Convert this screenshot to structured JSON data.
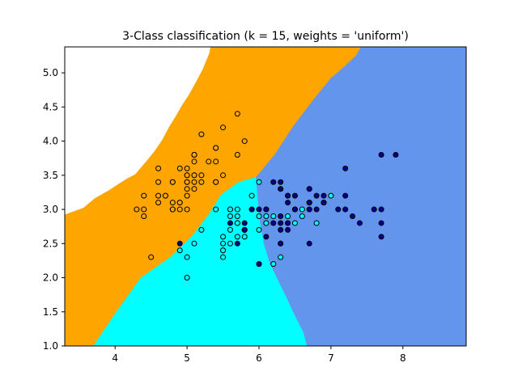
{
  "chart_data": {
    "type": "scatter",
    "title": "3-Class classification (k = 15, weights = 'uniform')",
    "xlabel": "",
    "ylabel": "",
    "xlim": [
      3.3,
      8.88
    ],
    "ylim": [
      1.0,
      5.38
    ],
    "x_ticks": [
      4,
      5,
      6,
      7,
      8
    ],
    "y_ticks": [
      1.0,
      1.5,
      2.0,
      2.5,
      3.0,
      3.5,
      4.0,
      4.5,
      5.0
    ],
    "grid": false,
    "legend": "none",
    "regions": [
      {
        "class": "class-0",
        "color": "#ffa500",
        "boundary": [
          [
            3.3,
            5.38
          ],
          [
            5.33,
            5.38
          ],
          [
            5.31,
            5.28
          ],
          [
            5.22,
            5.05
          ],
          [
            5.12,
            4.85
          ],
          [
            5.03,
            4.68
          ],
          [
            4.93,
            4.52
          ],
          [
            4.85,
            4.37
          ],
          [
            4.76,
            4.22
          ],
          [
            4.66,
            4.02
          ],
          [
            4.55,
            3.85
          ],
          [
            4.45,
            3.72
          ],
          [
            4.36,
            3.61
          ],
          [
            4.28,
            3.51
          ],
          [
            4.17,
            3.45
          ],
          [
            4.05,
            3.37
          ],
          [
            3.92,
            3.28
          ],
          [
            3.72,
            3.16
          ],
          [
            3.56,
            3.02
          ],
          [
            3.3,
            2.92
          ],
          [
            3.3,
            1.0
          ],
          [
            3.7,
            1.0
          ],
          [
            4.02,
            1.5
          ],
          [
            4.36,
            2.0
          ],
          [
            4.77,
            2.3
          ],
          [
            5.08,
            2.62
          ],
          [
            5.3,
            2.92
          ],
          [
            5.48,
            3.22
          ],
          [
            5.72,
            3.4
          ],
          [
            5.96,
            3.47
          ],
          [
            6.22,
            3.8
          ],
          [
            6.48,
            4.22
          ],
          [
            6.74,
            4.58
          ],
          [
            7.0,
            4.92
          ],
          [
            7.2,
            5.1
          ],
          [
            7.35,
            5.25
          ],
          [
            7.42,
            5.38
          ]
        ]
      },
      {
        "class": "class-1",
        "color": "#00ffff",
        "boundary": [
          [
            3.7,
            1.0
          ],
          [
            6.67,
            1.0
          ],
          [
            6.62,
            1.2
          ],
          [
            6.5,
            1.45
          ],
          [
            6.38,
            1.72
          ],
          [
            6.26,
            1.98
          ],
          [
            6.15,
            2.22
          ],
          [
            6.07,
            2.5
          ],
          [
            6.02,
            2.8
          ],
          [
            5.99,
            3.1
          ],
          [
            5.96,
            3.47
          ],
          [
            5.72,
            3.4
          ],
          [
            5.48,
            3.22
          ],
          [
            5.3,
            2.92
          ],
          [
            5.08,
            2.62
          ],
          [
            4.77,
            2.3
          ],
          [
            4.36,
            2.0
          ],
          [
            4.02,
            1.5
          ]
        ]
      },
      {
        "class": "class-2",
        "color": "#6495ed",
        "boundary": [
          [
            7.42,
            5.38
          ],
          [
            8.88,
            5.38
          ],
          [
            8.88,
            1.0
          ],
          [
            6.67,
            1.0
          ],
          [
            6.62,
            1.2
          ],
          [
            6.5,
            1.45
          ],
          [
            6.38,
            1.72
          ],
          [
            6.26,
            1.98
          ],
          [
            6.15,
            2.22
          ],
          [
            6.07,
            2.5
          ],
          [
            6.02,
            2.8
          ],
          [
            5.99,
            3.1
          ],
          [
            5.96,
            3.47
          ],
          [
            6.22,
            3.8
          ],
          [
            6.48,
            4.22
          ],
          [
            6.74,
            4.58
          ],
          [
            7.0,
            4.92
          ],
          [
            7.2,
            5.1
          ],
          [
            7.35,
            5.25
          ]
        ]
      }
    ],
    "series": [
      {
        "class": "class-0",
        "color": "#ffa500",
        "points": [
          [
            5.1,
            3.5
          ],
          [
            4.9,
            3.0
          ],
          [
            4.7,
            3.2
          ],
          [
            4.6,
            3.1
          ],
          [
            5.0,
            3.6
          ],
          [
            5.4,
            3.9
          ],
          [
            4.6,
            3.4
          ],
          [
            5.0,
            3.4
          ],
          [
            4.4,
            2.9
          ],
          [
            4.9,
            3.1
          ],
          [
            5.4,
            3.7
          ],
          [
            4.8,
            3.4
          ],
          [
            4.8,
            3.0
          ],
          [
            4.3,
            3.0
          ],
          [
            5.8,
            4.0
          ],
          [
            5.7,
            4.4
          ],
          [
            5.4,
            3.9
          ],
          [
            5.1,
            3.5
          ],
          [
            5.7,
            3.8
          ],
          [
            5.1,
            3.8
          ],
          [
            5.4,
            3.4
          ],
          [
            5.1,
            3.7
          ],
          [
            4.6,
            3.6
          ],
          [
            5.1,
            3.3
          ],
          [
            4.8,
            3.4
          ],
          [
            5.0,
            3.0
          ],
          [
            5.0,
            3.4
          ],
          [
            5.2,
            3.5
          ],
          [
            5.2,
            3.4
          ],
          [
            4.7,
            3.2
          ],
          [
            4.8,
            3.1
          ],
          [
            5.4,
            3.4
          ],
          [
            5.2,
            4.1
          ],
          [
            5.5,
            4.2
          ],
          [
            4.9,
            3.1
          ],
          [
            5.0,
            3.2
          ],
          [
            5.5,
            3.5
          ],
          [
            4.9,
            3.6
          ],
          [
            4.4,
            3.0
          ],
          [
            5.1,
            3.4
          ],
          [
            5.0,
            3.5
          ],
          [
            4.5,
            2.3
          ],
          [
            4.4,
            3.2
          ],
          [
            5.0,
            3.5
          ],
          [
            5.1,
            3.8
          ],
          [
            4.8,
            3.0
          ],
          [
            5.1,
            3.8
          ],
          [
            4.6,
            3.2
          ],
          [
            5.3,
            3.7
          ],
          [
            5.0,
            3.3
          ]
        ]
      },
      {
        "class": "class-1",
        "color": "#00ffff",
        "points": [
          [
            7.0,
            3.2
          ],
          [
            6.4,
            3.2
          ],
          [
            6.9,
            3.1
          ],
          [
            5.5,
            2.3
          ],
          [
            6.5,
            2.8
          ],
          [
            5.7,
            2.8
          ],
          [
            6.3,
            3.3
          ],
          [
            4.9,
            2.4
          ],
          [
            6.6,
            2.9
          ],
          [
            5.2,
            2.7
          ],
          [
            5.0,
            2.0
          ],
          [
            5.9,
            3.0
          ],
          [
            6.0,
            2.2
          ],
          [
            6.1,
            2.9
          ],
          [
            5.6,
            2.9
          ],
          [
            6.7,
            3.1
          ],
          [
            5.6,
            3.0
          ],
          [
            5.8,
            2.7
          ],
          [
            6.2,
            2.2
          ],
          [
            5.6,
            2.5
          ],
          [
            5.9,
            3.2
          ],
          [
            6.1,
            2.8
          ],
          [
            6.3,
            2.5
          ],
          [
            6.1,
            2.8
          ],
          [
            6.4,
            2.9
          ],
          [
            6.6,
            3.0
          ],
          [
            6.8,
            2.8
          ],
          [
            6.7,
            3.0
          ],
          [
            6.0,
            2.9
          ],
          [
            5.7,
            2.6
          ],
          [
            5.5,
            2.4
          ],
          [
            5.5,
            2.4
          ],
          [
            5.8,
            2.7
          ],
          [
            6.0,
            2.7
          ],
          [
            5.4,
            3.0
          ],
          [
            6.0,
            3.4
          ],
          [
            6.7,
            3.1
          ],
          [
            6.3,
            2.3
          ],
          [
            5.6,
            3.0
          ],
          [
            5.5,
            2.5
          ],
          [
            5.5,
            2.6
          ],
          [
            6.1,
            3.0
          ],
          [
            5.8,
            2.6
          ],
          [
            5.0,
            2.3
          ],
          [
            5.6,
            2.7
          ],
          [
            5.7,
            3.0
          ],
          [
            5.7,
            2.9
          ],
          [
            6.2,
            2.9
          ],
          [
            5.1,
            2.5
          ],
          [
            5.7,
            2.8
          ]
        ]
      },
      {
        "class": "class-2",
        "color": "#00008b",
        "points": [
          [
            6.3,
            3.3
          ],
          [
            5.8,
            2.7
          ],
          [
            7.1,
            3.0
          ],
          [
            6.3,
            2.9
          ],
          [
            6.5,
            3.0
          ],
          [
            7.6,
            3.0
          ],
          [
            4.9,
            2.5
          ],
          [
            7.3,
            2.9
          ],
          [
            6.7,
            2.5
          ],
          [
            7.2,
            3.6
          ],
          [
            6.5,
            3.2
          ],
          [
            6.4,
            2.7
          ],
          [
            6.8,
            3.0
          ],
          [
            5.7,
            2.5
          ],
          [
            5.8,
            2.8
          ],
          [
            6.4,
            3.2
          ],
          [
            6.5,
            3.0
          ],
          [
            7.7,
            3.8
          ],
          [
            7.7,
            2.6
          ],
          [
            6.0,
            2.2
          ],
          [
            6.9,
            3.2
          ],
          [
            5.6,
            2.8
          ],
          [
            7.7,
            2.8
          ],
          [
            6.3,
            2.7
          ],
          [
            6.7,
            3.3
          ],
          [
            7.2,
            3.2
          ],
          [
            6.2,
            2.8
          ],
          [
            6.1,
            3.0
          ],
          [
            6.4,
            2.8
          ],
          [
            7.2,
            3.0
          ],
          [
            7.4,
            2.8
          ],
          [
            7.9,
            3.8
          ],
          [
            6.4,
            2.8
          ],
          [
            6.3,
            2.8
          ],
          [
            6.1,
            2.6
          ],
          [
            7.7,
            3.0
          ],
          [
            6.3,
            3.4
          ],
          [
            6.4,
            3.1
          ],
          [
            6.0,
            3.0
          ],
          [
            6.9,
            3.1
          ],
          [
            6.7,
            3.1
          ],
          [
            6.9,
            3.1
          ],
          [
            5.8,
            2.7
          ],
          [
            6.8,
            3.2
          ],
          [
            6.7,
            3.3
          ],
          [
            6.7,
            3.0
          ],
          [
            6.3,
            2.5
          ],
          [
            6.5,
            3.0
          ],
          [
            6.2,
            3.4
          ],
          [
            5.9,
            3.0
          ]
        ]
      }
    ]
  }
}
